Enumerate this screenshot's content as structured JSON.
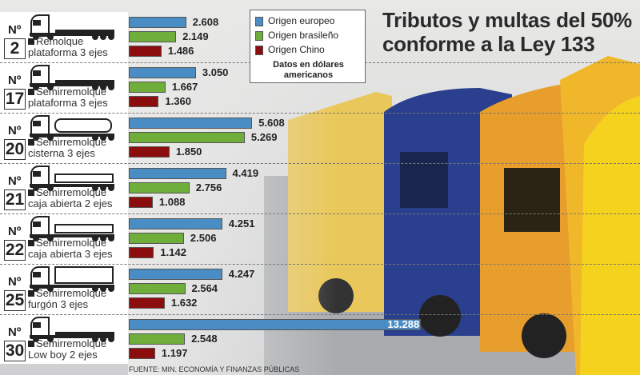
{
  "chart_data": {
    "type": "bar",
    "orientation": "horizontal",
    "title": "Tributos y multas del 50% conforme a la Ley 133",
    "note": "Datos en dólares americanos",
    "source": "FUENTE: MIN. ECONOMÍA Y FINANZAS PÚBLICAS",
    "legend": {
      "placement": "top-center"
    },
    "number_prefix": "Nº",
    "categories": [
      {
        "number": "2",
        "line1": "Remolque",
        "line2": "plataforma 3 ejes"
      },
      {
        "number": "17",
        "line1": "Semirremolque",
        "line2": "plataforma 3 ejes"
      },
      {
        "number": "20",
        "line1": "Semirremolque",
        "line2": "cisterna 3 ejes"
      },
      {
        "number": "21",
        "line1": "Semirremolque",
        "line2": "caja abierta 2 ejes"
      },
      {
        "number": "22",
        "line1": "Semirremolque",
        "line2": "caja abierta 3 ejes"
      },
      {
        "number": "25",
        "line1": "Semirremolque",
        "line2": "furgón 3 ejes"
      },
      {
        "number": "30",
        "line1": "Semirremolque",
        "line2": "Low boy 2 ejes"
      }
    ],
    "series": [
      {
        "name": "Origen europeo",
        "color": "#4a8cc4",
        "values": [
          2608,
          3050,
          5608,
          4419,
          4251,
          4247,
          13288
        ],
        "labels": [
          "2.608",
          "3.050",
          "5.608",
          "4.419",
          "4.251",
          "4.247",
          "13.288"
        ]
      },
      {
        "name": "Origen brasileño",
        "color": "#6fae3a",
        "values": [
          2149,
          1667,
          5269,
          2756,
          2506,
          2564,
          2548
        ],
        "labels": [
          "2.149",
          "1.667",
          "5.269",
          "2.756",
          "2.506",
          "2.564",
          "2.548"
        ]
      },
      {
        "name": "Origen Chino",
        "color": "#8c0d0d",
        "values": [
          1486,
          1360,
          1850,
          1088,
          1142,
          1632,
          1197
        ],
        "labels": [
          "1.486",
          "1.360",
          "1.850",
          "1.088",
          "1.142",
          "1.632",
          "1.197"
        ]
      }
    ]
  }
}
